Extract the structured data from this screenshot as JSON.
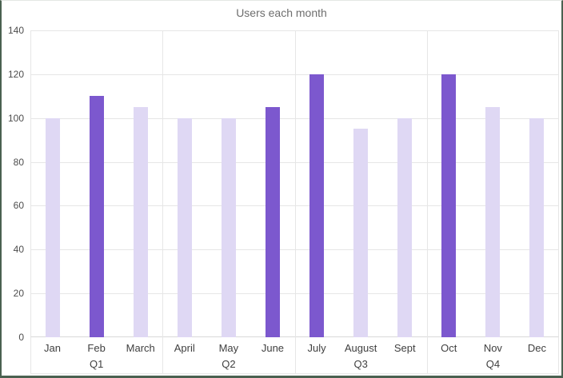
{
  "title": "Users each month",
  "colors": {
    "bar_light": "#dfd8f4",
    "bar_dark": "#7c58ce",
    "gridline": "#e6e6e6",
    "axis_line": "#d9d9d9",
    "frame_border": "#4a6150",
    "tick_text": "#4d4d4d",
    "label_text": "#3f3f3f",
    "title_text": "#6e6e6e"
  },
  "chart_data": {
    "type": "bar",
    "title": "Users each month",
    "categories": [
      "Jan",
      "Feb",
      "March",
      "April",
      "May",
      "June",
      "July",
      "August",
      "Sept",
      "Oct",
      "Nov",
      "Dec"
    ],
    "values": [
      100,
      110,
      105,
      100,
      100,
      105,
      120,
      95,
      100,
      120,
      105,
      100
    ],
    "highlighted": [
      "Feb",
      "June",
      "July",
      "Oct"
    ],
    "group_labels": [
      "Q1",
      "Q2",
      "Q3",
      "Q4"
    ],
    "months_per_group": 3,
    "xlabel": "",
    "ylabel": "",
    "ylim": [
      0,
      140
    ],
    "yticks": [
      0,
      20,
      40,
      60,
      80,
      100,
      120,
      140
    ],
    "grid": true,
    "legend": "none"
  }
}
